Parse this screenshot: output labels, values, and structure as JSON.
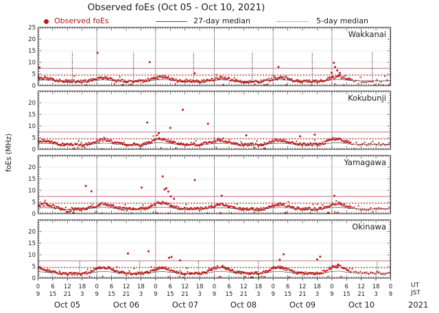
{
  "title": "Observed foEs (Oct 05 - Oct 10, 2021)",
  "legend": {
    "observed": "Observed foEs",
    "median27": "27-day median",
    "median5": "5-day median"
  },
  "ylabel": "foEs (MHz)",
  "axis": {
    "ut_unit": "UT",
    "jst_unit": "JST",
    "year": "2021",
    "ut_ticks": [
      "0",
      "6",
      "12",
      "18",
      "0",
      "6",
      "12",
      "18",
      "0",
      "6",
      "12",
      "18",
      "0",
      "6",
      "12",
      "18",
      "0",
      "6",
      "12",
      "18",
      "0",
      "6",
      "12",
      "18",
      "0"
    ],
    "jst_ticks": [
      "9",
      "15",
      "21",
      "3",
      "9",
      "15",
      "21",
      "3",
      "9",
      "15",
      "21",
      "3",
      "9",
      "15",
      "21",
      "3",
      "9",
      "15",
      "21",
      "3",
      "9",
      "15",
      "21",
      "3",
      "9"
    ],
    "day_labels": [
      "Oct 05",
      "Oct 06",
      "Oct 07",
      "Oct 08",
      "Oct 09",
      "Oct 10"
    ],
    "y_ticks": [
      0,
      5,
      10,
      15,
      20,
      25
    ]
  },
  "colors": {
    "observed": "#bf1616",
    "legend_observed_text": "#b51212",
    "ref_solid": "#c9838c",
    "ref_dotted": "#b22222",
    "median": "#1c1c1c",
    "median27": "#333333",
    "grid_day": "#9a9a9a",
    "grid_minor": "#e4e4e4",
    "text": "#1a1a1a",
    "spine": "#2a2a2a"
  },
  "chart_data": {
    "type": "scatter",
    "x_unit": "hours UT from Oct 05 2021 00:00",
    "x_range": [
      0,
      144
    ],
    "ylim": [
      0,
      25
    ],
    "median_step_h": 3,
    "ref_lines": {
      "solid_mhz": 7.4,
      "dotted_mhz": 4.5
    },
    "stations": [
      {
        "name": "Wakkanai",
        "median_5day_3h": [
          3.0,
          3.2,
          2.7,
          2.0,
          1.8,
          1.9,
          1.7,
          2.2,
          2.9,
          3.4,
          2.6,
          1.9,
          1.7,
          2.0,
          1.8,
          2.3,
          3.1,
          3.9,
          3.0,
          2.0,
          1.7,
          1.9,
          1.6,
          2.1,
          2.7,
          3.3,
          2.8,
          1.9,
          1.6,
          1.8,
          1.7,
          2.2,
          2.8,
          3.5,
          3.0,
          2.0,
          1.8,
          1.9,
          1.7,
          2.4,
          3.3,
          4.1,
          3.0,
          2.3,
          2.1,
          1.9,
          2.2,
          2.0,
          2.4
        ],
        "outliers": [
          [
            0.6,
            7.8
          ],
          [
            24.3,
            14.1
          ],
          [
            45.6,
            10.1
          ],
          [
            64,
            5.3
          ],
          [
            98.2,
            8.0
          ],
          [
            119.9,
            5.5
          ],
          [
            120.8,
            9.8
          ],
          [
            121.3,
            8.0
          ],
          [
            122.2,
            6.5
          ],
          [
            123.2,
            5.4
          ]
        ],
        "spikes": [
          [
            14,
            14.5
          ],
          [
            39,
            14.5
          ],
          [
            63.5,
            14.3
          ],
          [
            87.5,
            14.5
          ],
          [
            112,
            14.4
          ],
          [
            136.5,
            14.3
          ]
        ]
      },
      {
        "name": "Kokubunji",
        "median_5day_3h": [
          3.2,
          3.8,
          3.0,
          2.2,
          1.9,
          2.1,
          1.8,
          2.4,
          3.4,
          4.2,
          3.3,
          2.3,
          2.0,
          2.2,
          1.9,
          2.6,
          4.6,
          4.3,
          3.4,
          2.4,
          2.1,
          2.3,
          2.0,
          2.7,
          3.4,
          4.0,
          3.2,
          2.2,
          2.0,
          2.1,
          1.9,
          2.5,
          3.5,
          4.1,
          3.3,
          2.3,
          2.0,
          2.2,
          2.0,
          2.7,
          4.4,
          4.6,
          3.2,
          2.4,
          2.1,
          2.0,
          2.2,
          2.1,
          2.5
        ],
        "outliers": [
          [
            44.6,
            11.5
          ],
          [
            49.3,
            6.9
          ],
          [
            54,
            9.2
          ],
          [
            59.1,
            17.0
          ],
          [
            69.4,
            11.0
          ],
          [
            85,
            6.0
          ],
          [
            92.5,
            0.3
          ],
          [
            107,
            5.6
          ],
          [
            113,
            6.3
          ]
        ],
        "spikes": []
      },
      {
        "name": "Yamagawa",
        "median_5day_3h": [
          3.4,
          4.0,
          3.1,
          2.2,
          1.0,
          1.9,
          1.8,
          2.5,
          3.6,
          4.3,
          3.4,
          2.4,
          2.0,
          2.2,
          1.9,
          2.6,
          4.4,
          4.7,
          3.6,
          2.5,
          2.1,
          2.2,
          2.0,
          2.6,
          3.3,
          3.9,
          3.1,
          2.2,
          1.9,
          2.1,
          1.8,
          2.4,
          3.5,
          4.2,
          3.3,
          2.3,
          2.0,
          2.1,
          1.9,
          2.5,
          4.0,
          4.4,
          3.1,
          2.3,
          2.1,
          1.9,
          2.1,
          2.0,
          2.3
        ],
        "outliers": [
          [
            14.5,
            0.3
          ],
          [
            19.5,
            11.9
          ],
          [
            21.8,
            9.6
          ],
          [
            42.3,
            11.2
          ],
          [
            50.9,
            16.0
          ],
          [
            51.7,
            10.4
          ],
          [
            52.4,
            10.9
          ],
          [
            53.2,
            9.5
          ],
          [
            54.2,
            7.4
          ],
          [
            55.5,
            6.4
          ],
          [
            64,
            14.4
          ],
          [
            75,
            7.7
          ],
          [
            118.5,
            0.4
          ],
          [
            121,
            7.7
          ]
        ],
        "spikes": []
      },
      {
        "name": "Okinawa",
        "median_5day_3h": [
          4.4,
          3.6,
          2.6,
          2.0,
          1.7,
          1.9,
          1.8,
          2.6,
          4.0,
          4.8,
          3.8,
          2.5,
          1.9,
          2.0,
          1.8,
          2.4,
          3.9,
          4.6,
          3.5,
          2.4,
          2.0,
          2.1,
          1.9,
          2.5,
          4.2,
          5.0,
          3.8,
          2.6,
          2.1,
          2.2,
          2.0,
          2.6,
          4.3,
          4.7,
          3.4,
          2.4,
          2.0,
          2.1,
          1.9,
          2.7,
          4.6,
          5.2,
          3.6,
          2.5,
          2.2,
          2.0,
          2.3,
          2.1,
          2.4
        ],
        "outliers": [
          [
            36.7,
            10.6
          ],
          [
            45.1,
            11.5
          ],
          [
            53.5,
            8.7
          ],
          [
            54.5,
            9.1
          ],
          [
            58,
            7.6
          ],
          [
            87,
            0.3
          ],
          [
            98.7,
            7.9
          ],
          [
            100.3,
            10.2
          ],
          [
            114,
            8.0
          ],
          [
            115.2,
            9.2
          ],
          [
            122.5,
            5.8
          ]
        ],
        "spikes": [
          [
            17,
            7.3
          ],
          [
            41.5,
            7.3
          ],
          [
            65.5,
            7.4
          ],
          [
            90,
            7.2
          ],
          [
            138.5,
            7.3
          ]
        ]
      }
    ]
  }
}
